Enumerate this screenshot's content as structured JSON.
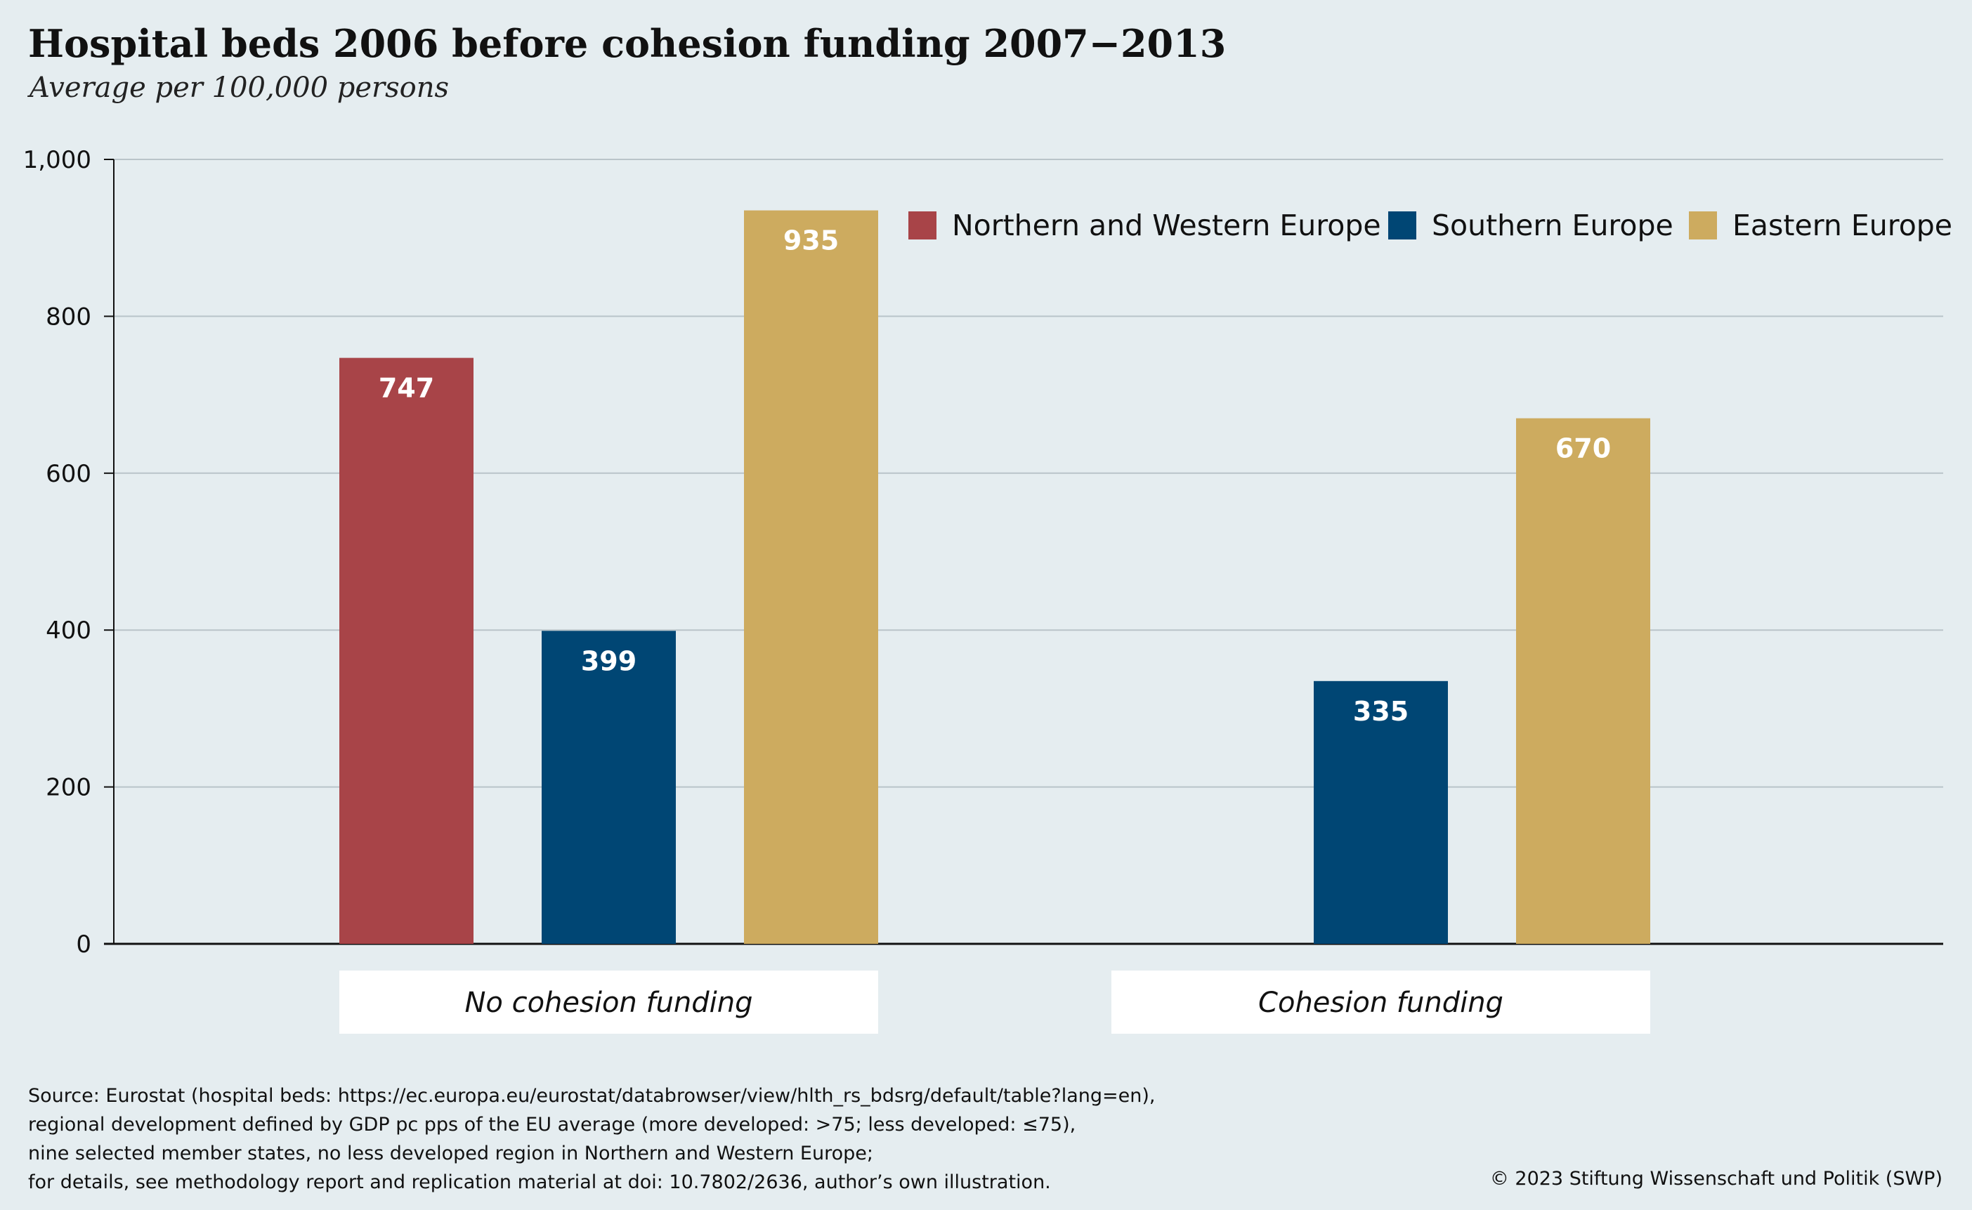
{
  "chart_data": {
    "type": "bar",
    "title": "Hospital beds 2006 before cohesion funding 2007−2013",
    "subtitle": "Average per 100,000 persons",
    "categories": [
      "No cohesion funding",
      "Cohesion funding"
    ],
    "series": [
      {
        "name": "Northern and Western Europe",
        "color": "#a84448",
        "values": [
          747,
          null
        ]
      },
      {
        "name": "Southern Europe",
        "color": "#004674",
        "values": [
          399,
          335
        ]
      },
      {
        "name": "Eastern Europe",
        "color": "#cdab5f",
        "values": [
          935,
          670
        ]
      }
    ],
    "ylim": [
      0,
      1000
    ],
    "yticks": [
      0,
      200,
      400,
      600,
      800,
      1000
    ],
    "ytick_labels": [
      "0",
      "200",
      "400",
      "600",
      "800",
      "1,000"
    ],
    "grid": true,
    "legend_position": "top-right"
  },
  "footer": {
    "source_lines": [
      "Source: Eurostat (hospital beds: https://ec.europa.eu/eurostat/databrowser/view/hlth_rs_bdsrg/default/table?lang=en),",
      "regional development defined by GDP pc pps of the EU average (more developed: >75; less developed: ≤75),",
      "nine selected member states, no less developed region in Northern and Western Europe;",
      "for details, see methodology report and replication material at doi: 10.7802/2636, author’s own illustration."
    ],
    "copyright": "© 2023 Stiftung Wissenschaft und Politik (SWP)"
  }
}
